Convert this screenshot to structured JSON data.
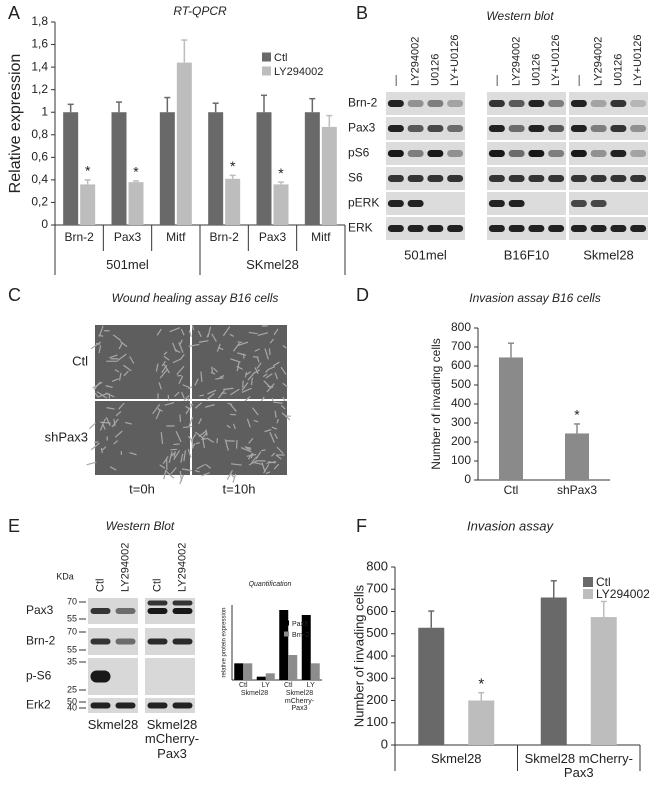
{
  "panel_labels": [
    "A",
    "B",
    "C",
    "D",
    "E",
    "F"
  ],
  "chart_data": [
    {
      "type": "bar",
      "title": "RT-QPCR",
      "ylabel": "Relative expression",
      "categories": [
        "Brn-2",
        "Pax3",
        "Mitf",
        "Brn-2",
        "Pax3",
        "Mitf"
      ],
      "groups": [
        "501mel",
        "SKmel28"
      ],
      "series": [
        {
          "name": "Ctl",
          "color": "#696969",
          "values": [
            1,
            1,
            1,
            1,
            1,
            1
          ],
          "errors": [
            0.07,
            0.09,
            0.13,
            0.08,
            0.15,
            0.12
          ]
        },
        {
          "name": "LY294002",
          "color": "#bdbdbd",
          "values": [
            0.36,
            0.38,
            1.44,
            0.41,
            0.36,
            0.87
          ],
          "errors": [
            0.04,
            0.01,
            0.2,
            0.03,
            0.02,
            0.1
          ],
          "significance": [
            "*",
            "*",
            null,
            "*",
            "*",
            null
          ]
        }
      ],
      "ylim": [
        0,
        1.8
      ],
      "yticks": [
        0,
        {
          "value": 0.2,
          "label": "0,2"
        },
        {
          "value": 0.4,
          "label": "0,4"
        },
        {
          "value": 0.6,
          "label": "0,6"
        },
        {
          "value": 0.8,
          "label": "0,8"
        },
        1,
        {
          "value": 1.2,
          "label": "1,2"
        },
        {
          "value": 1.4,
          "label": "1,4"
        },
        {
          "value": 1.6,
          "label": "1,6"
        },
        {
          "value": 1.8,
          "label": "1,8"
        }
      ]
    },
    {
      "type": "bar",
      "title": "Invasion assay B16 cells",
      "ylabel": "Number of invading cells",
      "categories": [
        "Ctl",
        "shPax3"
      ],
      "values": [
        645,
        245
      ],
      "errors": [
        75,
        50
      ],
      "significance": [
        null,
        "*"
      ],
      "color": "#8a8a8a",
      "ylim": [
        0,
        800
      ],
      "yticks": [
        0,
        100,
        200,
        300,
        400,
        500,
        600,
        700,
        800
      ]
    },
    {
      "type": "bar",
      "title": "Quantification",
      "ylabel": "relative protein expression",
      "categories": [
        "Ctl",
        "LY",
        "Ctl",
        "LY"
      ],
      "groups": [
        "Skmel28",
        "Skmel28 mCherry-Pax3"
      ],
      "series": [
        {
          "name": "Pax3",
          "color": "#000000",
          "values": [
            1,
            0.2,
            4.2,
            3.9
          ]
        },
        {
          "name": "Brn-2",
          "color": "#8c8c8c",
          "values": [
            1,
            0.4,
            1.5,
            1.0
          ]
        }
      ],
      "ylim": [
        0,
        4.5
      ]
    },
    {
      "type": "bar",
      "title": "Invasion assay",
      "ylabel": "Number of invading cells",
      "categories": [
        "Skmel28",
        "Skmel28 mCherry-Pax3"
      ],
      "series": [
        {
          "name": "Ctl",
          "color": "#696969",
          "values": [
            527,
            663
          ],
          "errors": [
            75,
            75
          ]
        },
        {
          "name": "LY294002",
          "color": "#bdbdbd",
          "values": [
            200,
            575
          ],
          "errors": [
            35,
            70
          ],
          "significance": [
            "*",
            null
          ]
        }
      ],
      "ylim": [
        0,
        800
      ],
      "yticks": [
        0,
        100,
        200,
        300,
        400,
        500,
        600,
        700,
        800
      ]
    }
  ],
  "western_blot_b": {
    "title": "Western blot",
    "proteins": [
      "Brn-2",
      "Pax3",
      "pS6",
      "S6",
      "pERK",
      "ERK"
    ],
    "cell_lines": [
      {
        "name": "501mel",
        "lanes": [
          "—",
          "LY294002",
          "U0126",
          "LY+U0126"
        ]
      },
      {
        "name": "B16F10",
        "lanes": [
          "—",
          "LY294002",
          "U0126",
          "LY+U0126"
        ]
      },
      {
        "name": "Skmel28",
        "lanes": [
          "—",
          "LY294002",
          "U0126",
          "LY+U0126"
        ]
      }
    ]
  },
  "wound_healing": {
    "title": "Wound healing assay B16 cells",
    "conditions": [
      "Ctl",
      "shPax3"
    ],
    "timepoints": [
      "t=0h",
      "t=10h"
    ]
  },
  "western_blot_e": {
    "title": "Western Blot",
    "unit": "KDa",
    "cell_lines": [
      {
        "name": "Skmel28",
        "lanes": [
          "Ctl",
          "LY294002"
        ]
      },
      {
        "name": "Skmel28 mCherry-Pax3",
        "lanes": [
          "Ctl",
          "LY294002"
        ]
      }
    ],
    "proteins": [
      {
        "name": "Pax3",
        "markers": [
          70,
          55
        ]
      },
      {
        "name": "Brn-2",
        "markers": [
          70,
          55
        ]
      },
      {
        "name": "p-S6",
        "markers": [
          35,
          25
        ]
      },
      {
        "name": "Erk2",
        "markers": [
          50,
          40
        ]
      }
    ]
  }
}
